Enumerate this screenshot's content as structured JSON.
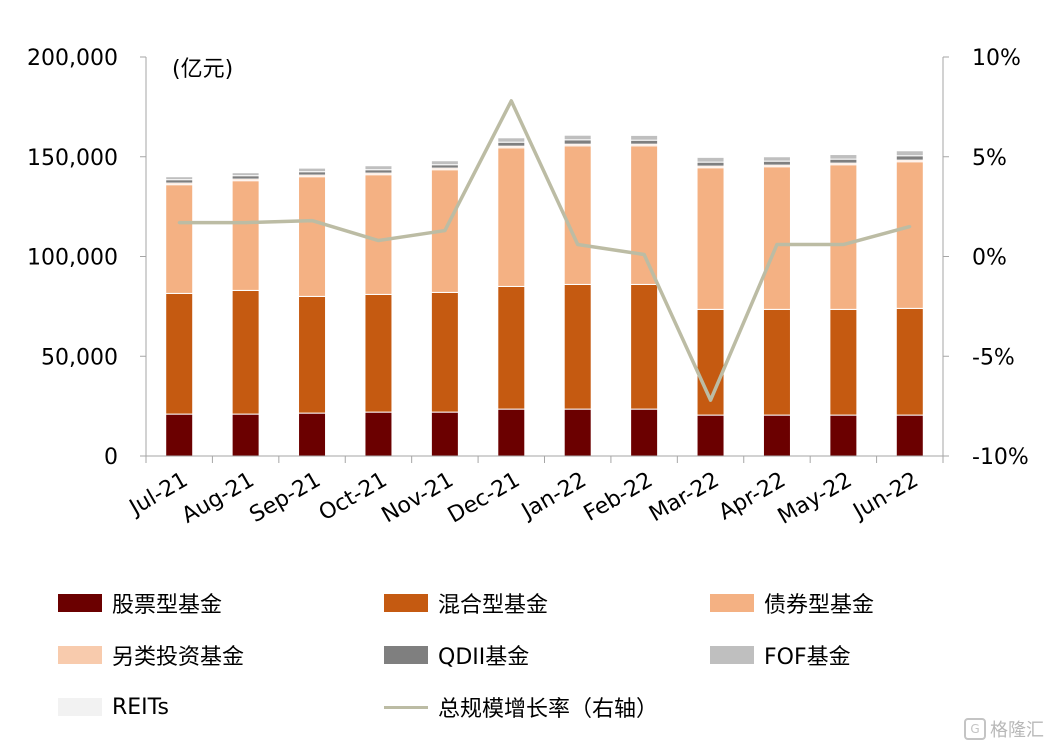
{
  "chart_data": {
    "type": "bar",
    "stacked": true,
    "unit_label": "(亿元)",
    "categories": [
      "Jul-21",
      "Aug-21",
      "Sep-21",
      "Oct-21",
      "Nov-21",
      "Dec-21",
      "Jan-22",
      "Feb-22",
      "Mar-22",
      "Apr-22",
      "May-22",
      "Jun-22"
    ],
    "ylim": [
      0,
      200000
    ],
    "y_ticks": [
      "0",
      "50,000",
      "100,000",
      "150,000",
      "200,000"
    ],
    "y2lim": [
      -10,
      10
    ],
    "y2_ticks": [
      "-10%",
      "-5%",
      "0%",
      "5%",
      "10%"
    ],
    "series": [
      {
        "name": "股票型基金",
        "color": "#6b0000",
        "values": [
          21000,
          21000,
          21500,
          22000,
          22000,
          23500,
          23500,
          23500,
          20500,
          20500,
          20500,
          20500
        ]
      },
      {
        "name": "混合型基金",
        "color": "#c55a11",
        "values": [
          60500,
          62000,
          58500,
          59000,
          60000,
          61500,
          62500,
          62500,
          53000,
          53000,
          53000,
          53500
        ]
      },
      {
        "name": "债券型基金",
        "color": "#f4b183",
        "values": [
          54500,
          55000,
          60000,
          60000,
          61500,
          69500,
          69500,
          69500,
          71000,
          71500,
          72500,
          73500
        ]
      },
      {
        "name": "另类投资基金",
        "color": "#f8cbad",
        "values": [
          800,
          800,
          800,
          800,
          800,
          800,
          800,
          800,
          800,
          800,
          800,
          800
        ]
      },
      {
        "name": "QDII基金",
        "color": "#7f7f7f",
        "values": [
          1700,
          1700,
          1700,
          1700,
          1700,
          2000,
          2200,
          2000,
          2000,
          2000,
          2000,
          2200
        ]
      },
      {
        "name": "FOF基金",
        "color": "#bfbfbf",
        "values": [
          1500,
          1500,
          1800,
          2000,
          2000,
          2200,
          2300,
          2400,
          2400,
          2200,
          2300,
          2500
        ]
      },
      {
        "name": "REITs",
        "color": "#f2f2f2",
        "values": [
          0,
          0,
          0,
          0,
          0,
          0,
          0,
          0,
          0,
          0,
          0,
          0
        ]
      }
    ],
    "line_series": {
      "name": "总规模增长率（右轴）",
      "axis": "right",
      "color": "#bcbca4",
      "values": [
        1.7,
        1.7,
        1.8,
        0.8,
        1.3,
        7.8,
        0.6,
        0.1,
        -7.2,
        0.6,
        0.6,
        1.5
      ]
    },
    "legend_position": "bottom",
    "grid": false
  },
  "watermark": "格隆汇"
}
